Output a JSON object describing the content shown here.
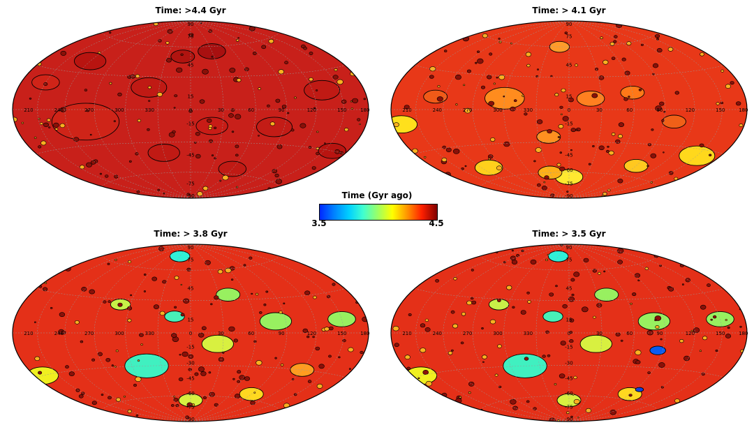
{
  "panels": [
    {
      "title": "Time: >4.4 Gyr",
      "base_color": "#c8201a",
      "lon_labels": [
        "210",
        "240",
        "270",
        "300",
        "330",
        "0",
        "30",
        "60",
        "90",
        "120",
        "150",
        "180"
      ],
      "lat_labels": [
        "90",
        "75",
        "45",
        "15",
        "-15",
        "-45",
        "-75",
        "-90"
      ],
      "basins": [
        {
          "lon": 260,
          "lat": -10,
          "r": 34,
          "color": "#cf2418"
        },
        {
          "lon": 320,
          "lat": 20,
          "r": 18,
          "color": "#c01a14"
        },
        {
          "lon": 20,
          "lat": -15,
          "r": 16,
          "color": "#c81c16"
        },
        {
          "lon": 80,
          "lat": -15,
          "r": 18,
          "color": "#c31c16"
        },
        {
          "lon": 130,
          "lat": 15,
          "r": 18,
          "color": "#c01a14"
        },
        {
          "lon": 240,
          "lat": 40,
          "r": 16,
          "color": "#b81410"
        },
        {
          "lon": 330,
          "lat": -40,
          "r": 16,
          "color": "#c01a14"
        },
        {
          "lon": 60,
          "lat": -55,
          "r": 14,
          "color": "#c01a14"
        },
        {
          "lon": 160,
          "lat": -30,
          "r": 14,
          "color": "#b81410"
        },
        {
          "lon": 30,
          "lat": 55,
          "r": 14,
          "color": "#a81010"
        },
        {
          "lon": 210,
          "lat": 20,
          "r": 14,
          "color": "#d02418"
        },
        {
          "lon": 350,
          "lat": 50,
          "r": 12,
          "color": "#b01410"
        }
      ]
    },
    {
      "title": "Time: > 4.1 Gyr",
      "base_color": "#e83818",
      "lon_labels": [
        "210",
        "240",
        "270",
        "300",
        "330",
        "0",
        "30",
        "60",
        "90",
        "120",
        "150",
        "180"
      ],
      "lat_labels": [
        "90",
        "75",
        "45",
        "15",
        "-15",
        "-45",
        "-60",
        "-75",
        "-90"
      ],
      "basins": [
        {
          "lon": 300,
          "lat": 10,
          "r": 20,
          "color": "#ff8c1e"
        },
        {
          "lon": 340,
          "lat": -25,
          "r": 12,
          "color": "#ff9020"
        },
        {
          "lon": 20,
          "lat": 10,
          "r": 14,
          "color": "#ff8020"
        },
        {
          "lon": 60,
          "lat": 15,
          "r": 12,
          "color": "#ff7818"
        },
        {
          "lon": 150,
          "lat": -35,
          "r": 18,
          "color": "#ffd81c"
        },
        {
          "lon": 190,
          "lat": -10,
          "r": 16,
          "color": "#ffe01c"
        },
        {
          "lon": 0,
          "lat": -65,
          "r": 14,
          "color": "#ffe830"
        },
        {
          "lon": 330,
          "lat": -60,
          "r": 12,
          "color": "#ffb018"
        },
        {
          "lon": 345,
          "lat": 60,
          "r": 10,
          "color": "#ff9c2a"
        },
        {
          "lon": 250,
          "lat": -50,
          "r": 14,
          "color": "#ffd01c"
        },
        {
          "lon": 100,
          "lat": -10,
          "r": 12,
          "color": "#f06018"
        },
        {
          "lon": 230,
          "lat": 10,
          "r": 12,
          "color": "#f05a18"
        },
        {
          "lon": 90,
          "lat": -50,
          "r": 12,
          "color": "#ffc820"
        }
      ]
    },
    {
      "title": "Time: > 3.8 Gyr",
      "base_color": "#e43018",
      "lon_labels": [
        "210",
        "240",
        "270",
        "300",
        "330",
        "0",
        "30",
        "60",
        "90",
        "120",
        "150",
        "180"
      ],
      "lat_labels": [
        "90",
        "75",
        "45",
        "15",
        "-15",
        "-30",
        "-45",
        "-60",
        "-75",
        "-90"
      ],
      "basins": [
        {
          "lon": 315,
          "lat": -30,
          "r": 22,
          "color": "#40f0c0"
        },
        {
          "lon": 25,
          "lat": -10,
          "r": 16,
          "color": "#d8f040"
        },
        {
          "lon": 330,
          "lat": 75,
          "r": 10,
          "color": "#30f0d8"
        },
        {
          "lon": 80,
          "lat": 10,
          "r": 16,
          "color": "#98f060"
        },
        {
          "lon": 150,
          "lat": 10,
          "r": 14,
          "color": "#98f060"
        },
        {
          "lon": 40,
          "lat": 35,
          "r": 12,
          "color": "#98f060"
        },
        {
          "lon": 190,
          "lat": -30,
          "r": 16,
          "color": "#f0f020"
        },
        {
          "lon": 0,
          "lat": -65,
          "r": 12,
          "color": "#d8f040"
        },
        {
          "lon": 290,
          "lat": 25,
          "r": 10,
          "color": "#c8f048"
        },
        {
          "lon": 345,
          "lat": 15,
          "r": 10,
          "color": "#48f0b8"
        },
        {
          "lon": 90,
          "lat": -55,
          "r": 12,
          "color": "#ffd820"
        },
        {
          "lon": 120,
          "lat": -30,
          "r": 12,
          "color": "#ff9c20"
        }
      ]
    },
    {
      "title": "Time: > 3.5 Gyr",
      "base_color": "#e43018",
      "lon_labels": [
        "210",
        "240",
        "270",
        "300",
        "330",
        "0",
        "30",
        "60",
        "90",
        "120",
        "150",
        "180"
      ],
      "lat_labels": [
        "90",
        "75",
        "45",
        "15",
        "-15",
        "-30",
        "-45",
        "-60",
        "-75",
        "-90"
      ],
      "basins": [
        {
          "lon": 315,
          "lat": -30,
          "r": 22,
          "color": "#40f0c0"
        },
        {
          "lon": 25,
          "lat": -10,
          "r": 16,
          "color": "#d8f040"
        },
        {
          "lon": 330,
          "lat": 75,
          "r": 10,
          "color": "#30f0d8"
        },
        {
          "lon": 80,
          "lat": 10,
          "r": 16,
          "color": "#98f060"
        },
        {
          "lon": 85,
          "lat": -15,
          "r": 8,
          "color": "#0a5cf0"
        },
        {
          "lon": 150,
          "lat": 10,
          "r": 14,
          "color": "#98f060"
        },
        {
          "lon": 40,
          "lat": 35,
          "r": 12,
          "color": "#98f060"
        },
        {
          "lon": 190,
          "lat": -30,
          "r": 16,
          "color": "#f0f020"
        },
        {
          "lon": 0,
          "lat": -65,
          "r": 12,
          "color": "#d8f040"
        },
        {
          "lon": 290,
          "lat": 25,
          "r": 10,
          "color": "#c8f048"
        },
        {
          "lon": 345,
          "lat": 15,
          "r": 10,
          "color": "#48f0b8"
        },
        {
          "lon": 90,
          "lat": -55,
          "r": 12,
          "color": "#ffd820"
        },
        {
          "lon": 95,
          "lat": -50,
          "r": 4,
          "color": "#1040e0"
        }
      ]
    }
  ],
  "colorbar": {
    "title": "Time (Gyr ago)",
    "min_label": "3.5",
    "max_label": "4.5"
  }
}
